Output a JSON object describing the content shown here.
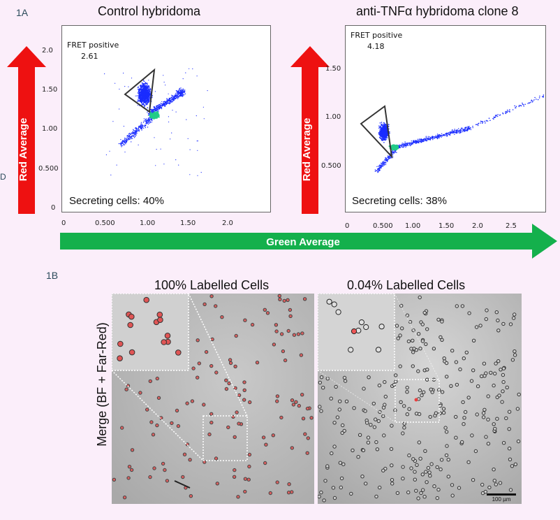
{
  "panel_labels": {
    "a": "1A",
    "b": "1B"
  },
  "left_stray_char": "D",
  "plots": [
    {
      "title": "Control hybridoma",
      "gate_label": "FRET positive",
      "gate_value": "2.61",
      "secreting": "Secreting cells: 40%",
      "y_ticks": [
        "2.0",
        "1.50",
        "1.00",
        "0.500",
        "0"
      ],
      "x_ticks": [
        "0",
        "0.500",
        "1.00",
        "1.50",
        "2.0"
      ]
    },
    {
      "title": "anti-TNFα hybridoma clone 8",
      "gate_label": "FRET positive",
      "gate_value": "4.18",
      "secreting": "Secreting cells: 38%",
      "y_ticks": [
        "1.50",
        "1.00",
        "0.500"
      ],
      "x_ticks": [
        "0",
        "0.500",
        "1.00",
        "1.50",
        "2.0",
        "2.5"
      ]
    }
  ],
  "axes": {
    "y_label": "Red Average",
    "x_label": "Green Average"
  },
  "colors": {
    "red_arrow": "#ee1111",
    "green_arrow": "#14b04c",
    "dots": "#1a2cff",
    "dense": "#22cc88"
  },
  "micrographs": {
    "left_title": "100% Labelled Cells",
    "right_title": "0.04% Labelled Cells",
    "row_label": "Merge (BF + Far-Red)",
    "scale_bar": "100 µm"
  }
}
